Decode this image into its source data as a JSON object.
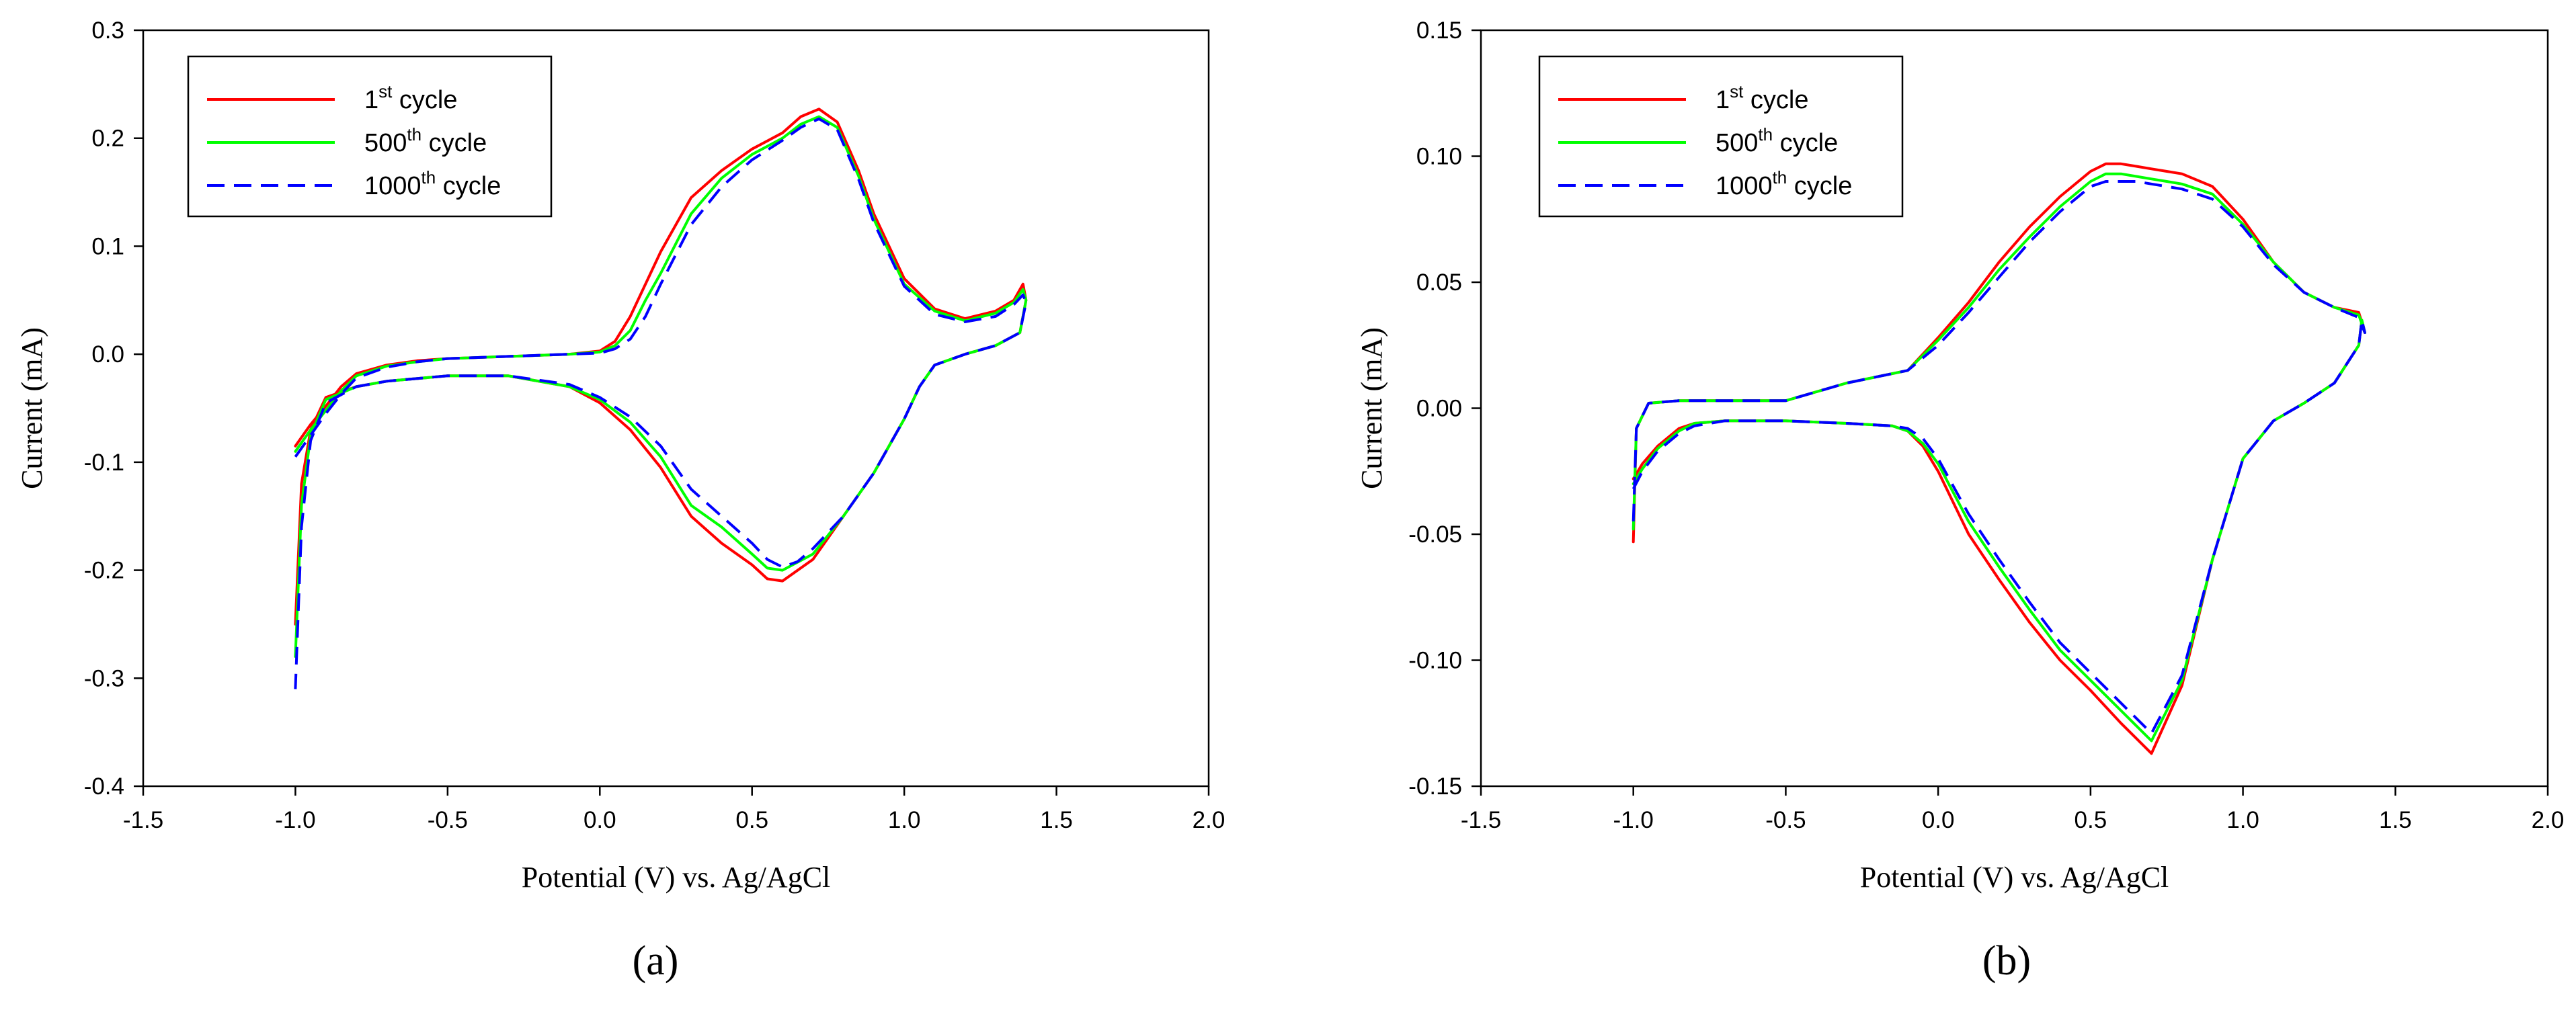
{
  "chart_data": [
    {
      "type": "line",
      "panel_label": "(a)",
      "xlabel": "Potential (V) vs. Ag/AgCl",
      "ylabel": "Current (mA)",
      "xlim": [
        -1.5,
        2.0
      ],
      "ylim": [
        -0.4,
        0.3
      ],
      "xticks": [
        -1.5,
        -1.0,
        -0.5,
        0.0,
        0.5,
        1.0,
        1.5,
        2.0
      ],
      "xtick_labels": [
        "-1.5",
        "-1.0",
        "-0.5",
        "0.0",
        "0.5",
        "1.0",
        "1.5",
        "2.0"
      ],
      "yticks": [
        -0.4,
        -0.3,
        -0.2,
        -0.1,
        0.0,
        0.1,
        0.2,
        0.3
      ],
      "ytick_labels": [
        "-0.4",
        "-0.3",
        "-0.2",
        "-0.1",
        "0.0",
        "0.1",
        "0.2",
        "0.3"
      ],
      "legend_position": "top-left",
      "series": [
        {
          "name": "1st cycle",
          "name_base": "1",
          "name_sup": "st",
          "name_rest": " cycle",
          "color": "#ff0000",
          "dash": "solid",
          "x": [
            -1.0,
            -0.95,
            -0.9,
            -0.85,
            -0.8,
            -0.7,
            -0.6,
            -0.5,
            -0.3,
            -0.1,
            0.0,
            0.05,
            0.1,
            0.2,
            0.3,
            0.4,
            0.5,
            0.6,
            0.66,
            0.72,
            0.78,
            0.85,
            0.9,
            1.0,
            1.1,
            1.2,
            1.3,
            1.36,
            1.39,
            1.4,
            1.38,
            1.3,
            1.2,
            1.1,
            1.05,
            1.0,
            0.9,
            0.8,
            0.7,
            0.6,
            0.55,
            0.5,
            0.4,
            0.3,
            0.2,
            0.1,
            0.0,
            -0.1,
            -0.3,
            -0.5,
            -0.7,
            -0.8,
            -0.9,
            -0.95,
            -0.98,
            -1.0
          ],
          "y": [
            -0.085,
            -0.065,
            -0.048,
            -0.03,
            -0.018,
            -0.01,
            -0.006,
            -0.004,
            -0.002,
            0.0,
            0.003,
            0.012,
            0.035,
            0.095,
            0.145,
            0.17,
            0.19,
            0.205,
            0.22,
            0.227,
            0.215,
            0.17,
            0.13,
            0.07,
            0.042,
            0.033,
            0.04,
            0.05,
            0.065,
            0.05,
            0.02,
            0.008,
            0.0,
            -0.01,
            -0.03,
            -0.06,
            -0.11,
            -0.15,
            -0.19,
            -0.21,
            -0.208,
            -0.195,
            -0.175,
            -0.15,
            -0.105,
            -0.07,
            -0.045,
            -0.03,
            -0.02,
            -0.02,
            -0.025,
            -0.03,
            -0.04,
            -0.07,
            -0.12,
            -0.25
          ]
        },
        {
          "name": "500th cycle",
          "name_base": "500",
          "name_sup": "th",
          "name_rest": " cycle",
          "color": "#00ff00",
          "dash": "solid",
          "x": [
            -1.0,
            -0.95,
            -0.9,
            -0.85,
            -0.8,
            -0.7,
            -0.6,
            -0.5,
            -0.3,
            -0.1,
            0.0,
            0.05,
            0.1,
            0.15,
            0.2,
            0.3,
            0.4,
            0.5,
            0.6,
            0.66,
            0.72,
            0.78,
            0.85,
            0.9,
            1.0,
            1.1,
            1.2,
            1.3,
            1.36,
            1.39,
            1.4,
            1.38,
            1.3,
            1.2,
            1.1,
            1.05,
            1.0,
            0.9,
            0.8,
            0.7,
            0.6,
            0.55,
            0.5,
            0.4,
            0.3,
            0.2,
            0.1,
            0.0,
            -0.1,
            -0.3,
            -0.5,
            -0.7,
            -0.8,
            -0.9,
            -0.95,
            -0.98,
            -1.0
          ],
          "y": [
            -0.09,
            -0.07,
            -0.052,
            -0.034,
            -0.02,
            -0.011,
            -0.007,
            -0.004,
            -0.002,
            0.0,
            0.002,
            0.008,
            0.022,
            0.05,
            0.075,
            0.13,
            0.163,
            0.185,
            0.2,
            0.213,
            0.22,
            0.21,
            0.165,
            0.125,
            0.065,
            0.04,
            0.031,
            0.038,
            0.048,
            0.06,
            0.05,
            0.02,
            0.008,
            0.0,
            -0.01,
            -0.03,
            -0.06,
            -0.11,
            -0.15,
            -0.185,
            -0.2,
            -0.198,
            -0.185,
            -0.16,
            -0.14,
            -0.095,
            -0.063,
            -0.042,
            -0.03,
            -0.02,
            -0.02,
            -0.025,
            -0.03,
            -0.042,
            -0.075,
            -0.14,
            -0.28
          ]
        },
        {
          "name": "1000th cycle",
          "name_base": "1000",
          "name_sup": "th",
          "name_rest": " cycle",
          "color": "#0000ff",
          "dash": "dashed",
          "x": [
            -1.0,
            -0.95,
            -0.9,
            -0.85,
            -0.8,
            -0.7,
            -0.6,
            -0.5,
            -0.3,
            -0.1,
            0.0,
            0.05,
            0.1,
            0.15,
            0.2,
            0.3,
            0.4,
            0.5,
            0.6,
            0.66,
            0.72,
            0.78,
            0.85,
            0.9,
            1.0,
            1.1,
            1.2,
            1.3,
            1.36,
            1.39,
            1.4,
            1.38,
            1.3,
            1.2,
            1.1,
            1.05,
            1.0,
            0.9,
            0.8,
            0.7,
            0.65,
            0.6,
            0.55,
            0.5,
            0.4,
            0.3,
            0.2,
            0.1,
            0.0,
            -0.1,
            -0.3,
            -0.5,
            -0.7,
            -0.8,
            -0.9,
            -0.95,
            -0.98,
            -1.0
          ],
          "y": [
            -0.095,
            -0.075,
            -0.055,
            -0.037,
            -0.022,
            -0.012,
            -0.007,
            -0.004,
            -0.002,
            0.0,
            0.001,
            0.005,
            0.014,
            0.035,
            0.065,
            0.12,
            0.155,
            0.18,
            0.198,
            0.21,
            0.218,
            0.208,
            0.162,
            0.122,
            0.063,
            0.037,
            0.03,
            0.035,
            0.046,
            0.055,
            0.048,
            0.02,
            0.008,
            0.0,
            -0.01,
            -0.03,
            -0.06,
            -0.11,
            -0.15,
            -0.18,
            -0.192,
            -0.197,
            -0.19,
            -0.175,
            -0.15,
            -0.125,
            -0.085,
            -0.058,
            -0.04,
            -0.028,
            -0.02,
            -0.02,
            -0.025,
            -0.03,
            -0.045,
            -0.08,
            -0.16,
            -0.31
          ]
        }
      ]
    },
    {
      "type": "line",
      "panel_label": "(b)",
      "xlabel": "Potential (V) vs. Ag/AgCl",
      "ylabel": "Current (mA)",
      "xlim": [
        -1.5,
        2.0
      ],
      "ylim": [
        -0.15,
        0.15
      ],
      "xticks": [
        -1.5,
        -1.0,
        -0.5,
        0.0,
        0.5,
        1.0,
        1.5,
        2.0
      ],
      "xtick_labels": [
        "-1.5",
        "-1.0",
        "-0.5",
        "0.0",
        "0.5",
        "1.0",
        "1.5",
        "2.0"
      ],
      "yticks": [
        -0.15,
        -0.1,
        -0.05,
        0.0,
        0.05,
        0.1,
        0.15
      ],
      "ytick_labels": [
        "-0.15",
        "-0.10",
        "-0.05",
        "0.00",
        "0.05",
        "0.10",
        "0.15"
      ],
      "legend_position": "top-left",
      "series": [
        {
          "name": "1st cycle",
          "name_base": "1",
          "name_sup": "st",
          "name_rest": " cycle",
          "color": "#ff0000",
          "dash": "solid",
          "x": [
            -1.0,
            -0.97,
            -0.92,
            -0.85,
            -0.8,
            -0.7,
            -0.6,
            -0.5,
            -0.3,
            -0.15,
            -0.1,
            -0.05,
            0.0,
            0.1,
            0.2,
            0.3,
            0.4,
            0.5,
            0.6,
            0.7,
            0.8,
            0.9,
            1.0,
            1.1,
            1.2,
            1.3,
            1.38,
            1.39,
            1.4,
            1.38,
            1.3,
            1.2,
            1.1,
            1.0,
            0.9,
            0.8,
            0.75,
            0.7,
            0.65,
            0.6,
            0.55,
            0.5,
            0.4,
            0.3,
            0.2,
            0.1,
            0.0,
            -0.1,
            -0.3,
            -0.5,
            -0.7,
            -0.85,
            -0.95,
            -0.99,
            -1.0
          ],
          "y": [
            -0.028,
            -0.022,
            -0.015,
            -0.008,
            -0.006,
            -0.005,
            -0.005,
            -0.005,
            -0.006,
            -0.007,
            -0.009,
            -0.015,
            -0.025,
            -0.05,
            -0.068,
            -0.085,
            -0.1,
            -0.112,
            -0.125,
            -0.137,
            -0.11,
            -0.06,
            -0.02,
            -0.005,
            0.002,
            0.01,
            0.025,
            0.035,
            0.03,
            0.038,
            0.04,
            0.046,
            0.058,
            0.075,
            0.088,
            0.093,
            0.094,
            0.095,
            0.096,
            0.097,
            0.097,
            0.094,
            0.084,
            0.072,
            0.058,
            0.042,
            0.028,
            0.015,
            0.01,
            0.003,
            0.003,
            0.003,
            0.002,
            -0.008,
            -0.053
          ]
        },
        {
          "name": "500th cycle",
          "name_base": "500",
          "name_sup": "th",
          "name_rest": " cycle",
          "color": "#00ff00",
          "dash": "solid",
          "x": [
            -1.0,
            -0.97,
            -0.92,
            -0.85,
            -0.8,
            -0.7,
            -0.6,
            -0.5,
            -0.3,
            -0.15,
            -0.1,
            -0.05,
            0.0,
            0.1,
            0.2,
            0.3,
            0.4,
            0.5,
            0.6,
            0.7,
            0.8,
            0.9,
            1.0,
            1.1,
            1.2,
            1.3,
            1.38,
            1.39,
            1.4,
            1.38,
            1.3,
            1.2,
            1.1,
            1.0,
            0.9,
            0.8,
            0.75,
            0.7,
            0.65,
            0.6,
            0.55,
            0.5,
            0.4,
            0.3,
            0.2,
            0.1,
            0.0,
            -0.1,
            -0.3,
            -0.5,
            -0.7,
            -0.85,
            -0.95,
            -0.99,
            -1.0
          ],
          "y": [
            -0.03,
            -0.024,
            -0.016,
            -0.009,
            -0.006,
            -0.005,
            -0.005,
            -0.005,
            -0.006,
            -0.007,
            -0.009,
            -0.014,
            -0.022,
            -0.045,
            -0.063,
            -0.08,
            -0.096,
            -0.108,
            -0.12,
            -0.132,
            -0.108,
            -0.06,
            -0.02,
            -0.005,
            0.002,
            0.01,
            0.025,
            0.035,
            0.03,
            0.037,
            0.04,
            0.046,
            0.058,
            0.073,
            0.085,
            0.089,
            0.09,
            0.091,
            0.092,
            0.093,
            0.093,
            0.09,
            0.08,
            0.068,
            0.055,
            0.04,
            0.027,
            0.015,
            0.01,
            0.003,
            0.003,
            0.003,
            0.002,
            -0.008,
            -0.048
          ]
        },
        {
          "name": "1000th cycle",
          "name_base": "1000",
          "name_sup": "th",
          "name_rest": " cycle",
          "color": "#0000ff",
          "dash": "dashed",
          "x": [
            -1.0,
            -0.97,
            -0.92,
            -0.85,
            -0.8,
            -0.7,
            -0.6,
            -0.5,
            -0.3,
            -0.15,
            -0.1,
            -0.05,
            0.0,
            0.1,
            0.2,
            0.3,
            0.4,
            0.5,
            0.6,
            0.7,
            0.8,
            0.9,
            1.0,
            1.1,
            1.2,
            1.3,
            1.38,
            1.39,
            1.4,
            1.38,
            1.3,
            1.2,
            1.1,
            1.0,
            0.9,
            0.8,
            0.75,
            0.7,
            0.65,
            0.6,
            0.55,
            0.5,
            0.4,
            0.3,
            0.2,
            0.1,
            0.0,
            -0.1,
            -0.3,
            -0.5,
            -0.7,
            -0.85,
            -0.95,
            -0.99,
            -1.0
          ],
          "y": [
            -0.032,
            -0.025,
            -0.017,
            -0.01,
            -0.007,
            -0.005,
            -0.005,
            -0.005,
            -0.006,
            -0.007,
            -0.008,
            -0.012,
            -0.02,
            -0.042,
            -0.06,
            -0.077,
            -0.093,
            -0.105,
            -0.117,
            -0.129,
            -0.106,
            -0.06,
            -0.02,
            -0.005,
            0.002,
            0.01,
            0.025,
            0.035,
            0.03,
            0.036,
            0.04,
            0.046,
            0.057,
            0.072,
            0.083,
            0.087,
            0.088,
            0.089,
            0.09,
            0.09,
            0.09,
            0.088,
            0.078,
            0.066,
            0.052,
            0.038,
            0.025,
            0.015,
            0.01,
            0.003,
            0.003,
            0.003,
            0.002,
            -0.008,
            -0.045
          ]
        }
      ]
    }
  ]
}
